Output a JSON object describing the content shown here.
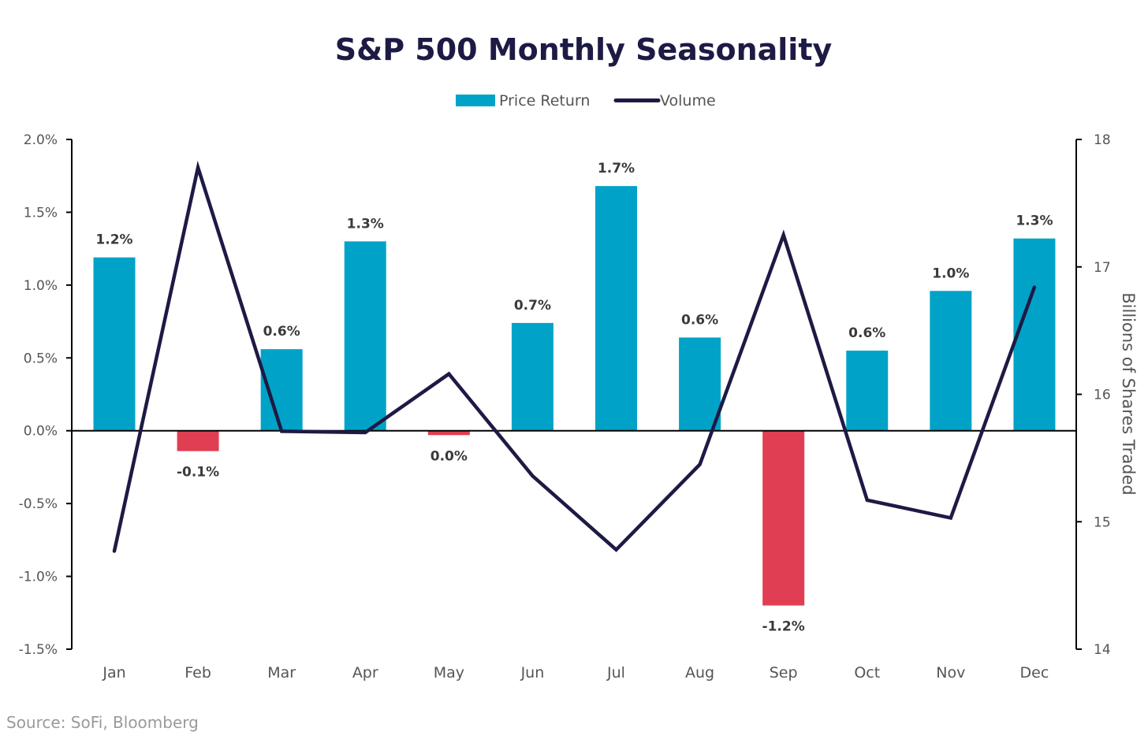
{
  "chart_data": {
    "type": "bar",
    "title": "S&P 500 Monthly Seasonality",
    "categories": [
      "Jan",
      "Feb",
      "Mar",
      "Apr",
      "May",
      "Jun",
      "Jul",
      "Aug",
      "Sep",
      "Oct",
      "Nov",
      "Dec"
    ],
    "series": [
      {
        "name": "Price Return",
        "type": "bar",
        "axis": "left",
        "values": [
          1.19,
          -0.14,
          0.56,
          1.3,
          -0.03,
          0.74,
          1.68,
          0.64,
          -1.2,
          0.55,
          0.96,
          1.32
        ],
        "labels": [
          "1.2%",
          "-0.1%",
          "0.6%",
          "1.3%",
          "0.0%",
          "0.7%",
          "1.7%",
          "0.6%",
          "-1.2%",
          "0.6%",
          "1.0%",
          "1.3%"
        ],
        "color_positive": "#00a3c7",
        "color_negative": "#e03e52"
      },
      {
        "name": "Volume",
        "type": "line",
        "axis": "right",
        "values": [
          14.77,
          17.78,
          15.71,
          15.7,
          16.16,
          15.36,
          14.78,
          15.45,
          17.25,
          15.17,
          15.03,
          16.84
        ],
        "color": "#1d1a45"
      }
    ],
    "y_left": {
      "min": -1.5,
      "max": 2.0,
      "ticks": [
        2.0,
        1.5,
        1.0,
        0.5,
        0.0,
        -0.5,
        -1.0,
        -1.5
      ],
      "tick_labels": [
        "2.0%",
        "1.5%",
        "1.0%",
        "0.5%",
        "0.0%",
        "-0.5%",
        "-1.0%",
        "-1.5%"
      ],
      "label": ""
    },
    "y_right": {
      "min": 14,
      "max": 18,
      "ticks": [
        18,
        17,
        16,
        15,
        14
      ],
      "tick_labels": [
        "18",
        "17",
        "16",
        "15",
        "14"
      ],
      "label": "Billions of Shares Traded"
    },
    "xlabel": "",
    "legend": {
      "placement": "top-center",
      "entries": [
        "Price Return",
        "Volume"
      ]
    },
    "grid": false
  },
  "source": "Source: SoFi, Bloomberg"
}
